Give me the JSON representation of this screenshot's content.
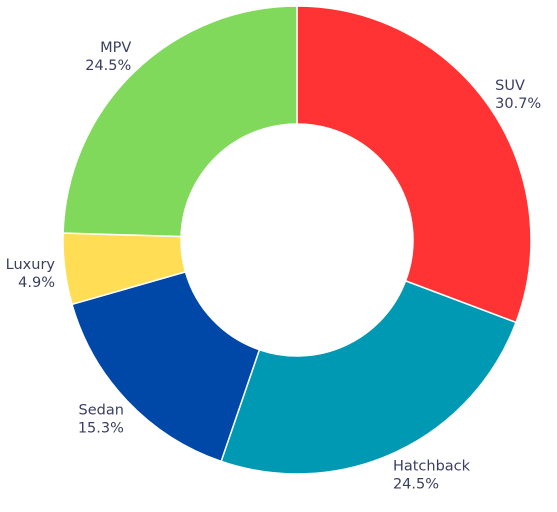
{
  "chart_data": {
    "type": "pie",
    "variant": "donut",
    "start": "top",
    "direction": "clockwise",
    "slices": [
      {
        "label": "SUV",
        "value": 30.7,
        "value_label": "30.7%",
        "color": "#ff3333"
      },
      {
        "label": "Hatchback",
        "value": 24.5,
        "value_label": "24.5%",
        "color": "#0099b3"
      },
      {
        "label": "Sedan",
        "value": 15.3,
        "value_label": "15.3%",
        "color": "#0048a8"
      },
      {
        "label": "Luxury",
        "value": 4.9,
        "value_label": "4.9%",
        "color": "#ffdd55"
      },
      {
        "label": "MPV",
        "value": 24.5,
        "value_label": "24.5%",
        "color": "#80d95a"
      }
    ]
  }
}
